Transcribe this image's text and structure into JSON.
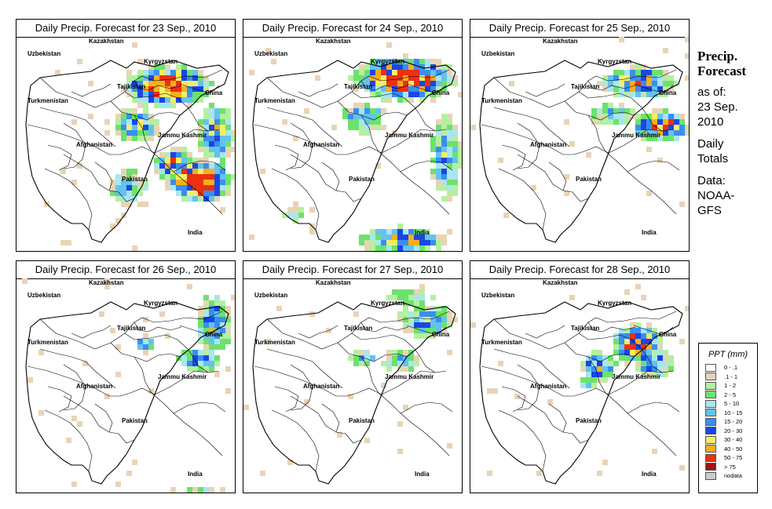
{
  "panels": [
    {
      "title": "Daily Precip. Forecast for  23 Sep., 2010"
    },
    {
      "title": "Daily Precip. Forecast for  24 Sep., 2010"
    },
    {
      "title": "Daily Precip. Forecast for  25 Sep., 2010"
    },
    {
      "title": "Daily Precip. Forecast for  26 Sep., 2010"
    },
    {
      "title": "Daily Precip. Forecast for  27 Sep., 2010"
    },
    {
      "title": "Daily Precip. Forecast for  28 Sep., 2010"
    }
  ],
  "map_labels": {
    "kazakhstan": "Kazakhstan",
    "uzbekistan": "Uzbekistan",
    "kyrgyzstan": "Kyrgyzstan",
    "tajikistan": "Tajikistan",
    "turkmenistan": "Turkmenistan",
    "china": "China",
    "jammu_kashmir": "Jammu Kashmir",
    "afghanistan": "Afghanistan",
    "pakistan": "Pakistan",
    "india": "India"
  },
  "sidebar": {
    "heading_line1": "Precip.",
    "heading_line2": "Forecast",
    "asof_line1": "as of:",
    "asof_line2": "23 Sep.",
    "asof_line3": "2010",
    "totals_line1": "Daily",
    "totals_line2": "Totals",
    "data_line1": "Data:",
    "data_line2": "NOAA-",
    "data_line3": "GFS"
  },
  "legend": {
    "title": "PPT (mm)",
    "items": [
      {
        "label": "0 - .1",
        "color": "#ffffff"
      },
      {
        "label": ".1 - 1",
        "color": "#e8d4b4"
      },
      {
        "label": "1 - 2",
        "color": "#b4f0a0"
      },
      {
        "label": "2 - 5",
        "color": "#6ce26c"
      },
      {
        "label": "5 - 10",
        "color": "#a8e6f0"
      },
      {
        "label": "10 - 15",
        "color": "#64c2ee"
      },
      {
        "label": "15 - 20",
        "color": "#3a8ef0"
      },
      {
        "label": "20 - 30",
        "color": "#1a46e6"
      },
      {
        "label": "30 - 40",
        "color": "#f4ee64"
      },
      {
        "label": "40 - 50",
        "color": "#f6b01e"
      },
      {
        "label": "50 - 75",
        "color": "#ec3010"
      },
      {
        "label": "> 75",
        "color": "#a01410"
      },
      {
        "label": "nodata",
        "color": "#cccccc"
      }
    ]
  }
}
